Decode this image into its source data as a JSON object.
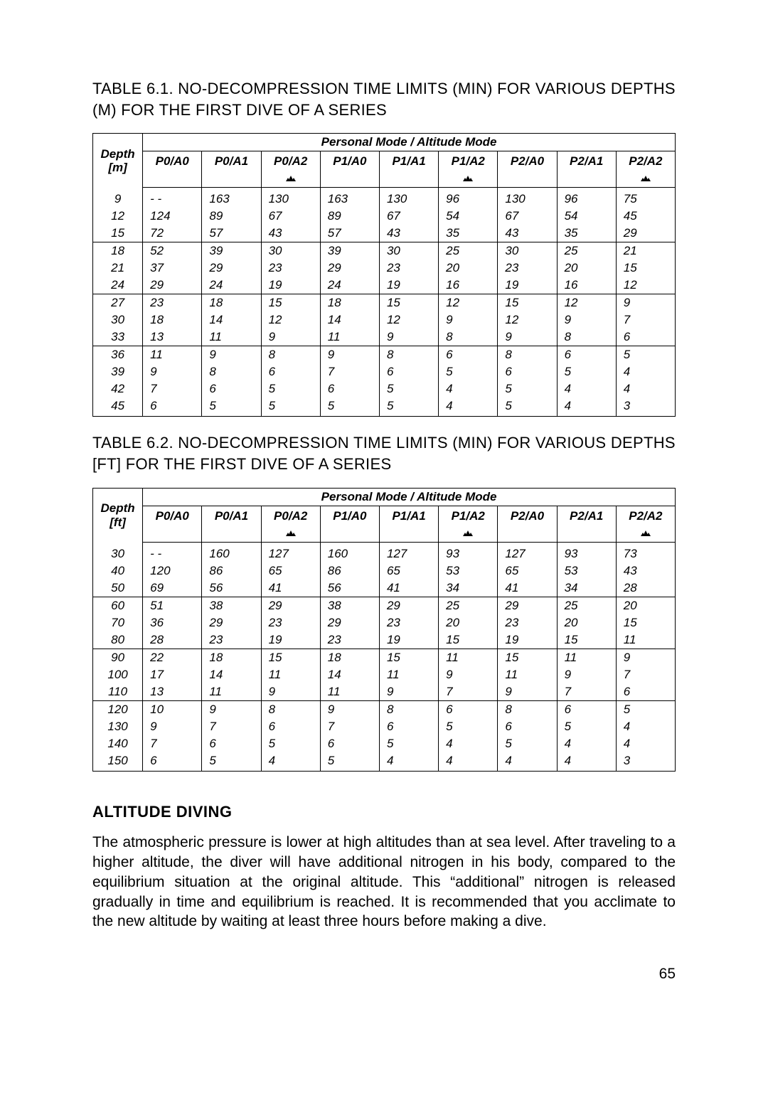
{
  "title_61": "TABLE 6.1. NO-DECOMPRESSION TIME LIMITS (MIN) FOR VARIOUS DEPTHS (M) FOR THE FIRST DIVE OF A SERIES",
  "title_62": "TABLE 6.2. NO-DECOMPRESSION TIME LIMITS (MIN) FOR VARIOUS DEPTHS [FT] FOR THE FIRST DIVE OF A SERIES",
  "mode_header": "Personal Mode / Altitude Mode",
  "depth_label": "Depth",
  "depth_unit_m": "[m]",
  "depth_unit_ft": "[ft]",
  "cols": [
    "P0/A0",
    "P0/A1",
    "P0/A2",
    "P1/A0",
    "P1/A1",
    "P1/A2",
    "P2/A0",
    "P2/A1",
    "P2/A2"
  ],
  "mountain_cols": [
    false,
    false,
    true,
    false,
    false,
    true,
    false,
    false,
    true
  ],
  "table_m": {
    "depths": [
      "9",
      "12",
      "15",
      "18",
      "21",
      "24",
      "27",
      "30",
      "33",
      "36",
      "39",
      "42",
      "45"
    ],
    "rows": [
      [
        "- -",
        "163",
        "130",
        "163",
        "130",
        "96",
        "130",
        "96",
        "75"
      ],
      [
        "124",
        "89",
        "67",
        "89",
        "67",
        "54",
        "67",
        "54",
        "45"
      ],
      [
        "72",
        "57",
        "43",
        "57",
        "43",
        "35",
        "43",
        "35",
        "29"
      ],
      [
        "52",
        "39",
        "30",
        "39",
        "30",
        "25",
        "30",
        "25",
        "21"
      ],
      [
        "37",
        "29",
        "23",
        "29",
        "23",
        "20",
        "23",
        "20",
        "15"
      ],
      [
        "29",
        "24",
        "19",
        "24",
        "19",
        "16",
        "19",
        "16",
        "12"
      ],
      [
        "23",
        "18",
        "15",
        "18",
        "15",
        "12",
        "15",
        "12",
        "9"
      ],
      [
        "18",
        "14",
        "12",
        "14",
        "12",
        "9",
        "12",
        "9",
        "7"
      ],
      [
        "13",
        "11",
        "9",
        "11",
        "9",
        "8",
        "9",
        "8",
        "6"
      ],
      [
        "11",
        "9",
        "8",
        "9",
        "8",
        "6",
        "8",
        "6",
        "5"
      ],
      [
        "9",
        "8",
        "6",
        "7",
        "6",
        "5",
        "6",
        "5",
        "4"
      ],
      [
        "7",
        "6",
        "5",
        "6",
        "5",
        "4",
        "5",
        "4",
        "4"
      ],
      [
        "6",
        "5",
        "5",
        "5",
        "5",
        "4",
        "5",
        "4",
        "3"
      ]
    ],
    "sep_after": [
      2,
      5,
      8
    ]
  },
  "table_ft": {
    "depths": [
      "30",
      "40",
      "50",
      "60",
      "70",
      "80",
      "90",
      "100",
      "110",
      "120",
      "130",
      "140",
      "150"
    ],
    "rows": [
      [
        "- -",
        "160",
        "127",
        "160",
        "127",
        "93",
        "127",
        "93",
        "73"
      ],
      [
        "120",
        "86",
        "65",
        "86",
        "65",
        "53",
        "65",
        "53",
        "43"
      ],
      [
        "69",
        "56",
        "41",
        "56",
        "41",
        "34",
        "41",
        "34",
        "28"
      ],
      [
        "51",
        "38",
        "29",
        "38",
        "29",
        "25",
        "29",
        "25",
        "20"
      ],
      [
        "36",
        "29",
        "23",
        "29",
        "23",
        "20",
        "23",
        "20",
        "15"
      ],
      [
        "28",
        "23",
        "19",
        "23",
        "19",
        "15",
        "19",
        "15",
        "11"
      ],
      [
        "22",
        "18",
        "15",
        "18",
        "15",
        "11",
        "15",
        "11",
        "9"
      ],
      [
        "17",
        "14",
        "11",
        "14",
        "11",
        "9",
        "11",
        "9",
        "7"
      ],
      [
        "13",
        "11",
        "9",
        "11",
        "9",
        "7",
        "9",
        "7",
        "6"
      ],
      [
        "10",
        "9",
        "8",
        "9",
        "8",
        "6",
        "8",
        "6",
        "5"
      ],
      [
        "9",
        "7",
        "6",
        "7",
        "6",
        "5",
        "6",
        "5",
        "4"
      ],
      [
        "7",
        "6",
        "5",
        "6",
        "5",
        "4",
        "5",
        "4",
        "4"
      ],
      [
        "6",
        "5",
        "4",
        "5",
        "4",
        "4",
        "4",
        "4",
        "3"
      ]
    ],
    "sep_after": [
      2,
      5,
      8
    ]
  },
  "section_heading": "ALTITUDE DIVING",
  "body_text": "The atmospheric pressure is lower at high altitudes than at sea level. After traveling to a higher altitude, the diver will have additional nitrogen in his body, compared to the equilibrium situation at the original altitude. This “additional” nitrogen is released gradually in time and equilibrium is reached. It is recommended that you acclimate to the new altitude by waiting at least three hours before making a dive.",
  "page_number": "65",
  "style": {
    "border_color": "#000000",
    "background": "#ffffff"
  }
}
